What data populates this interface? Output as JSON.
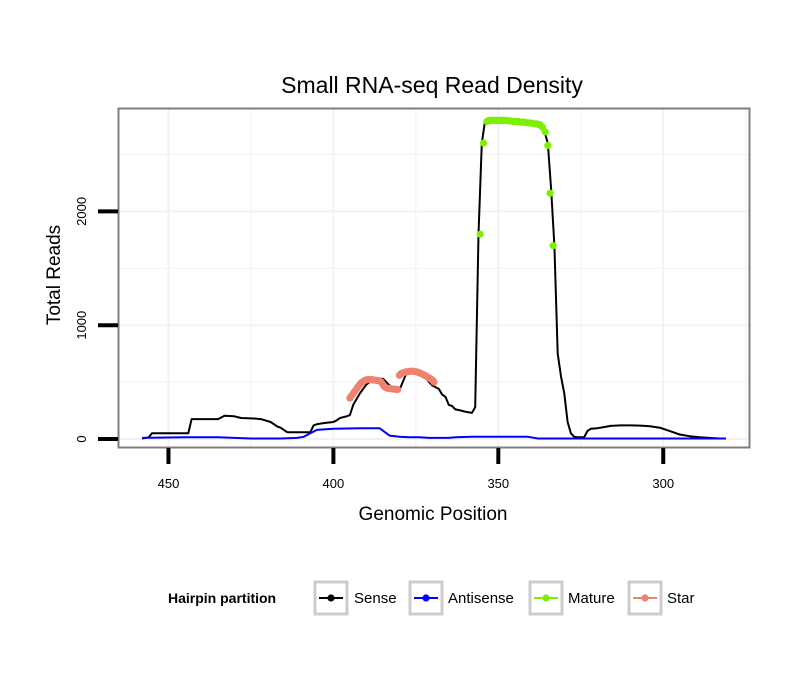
{
  "chart_data": {
    "type": "line",
    "title": "Small RNA-seq Read Density",
    "xlabel": "Genomic Position",
    "ylabel": "Total Reads",
    "xlim": [
      465,
      274
    ],
    "ylim": [
      -70,
      2900
    ],
    "x_reversed": true,
    "grid": true,
    "x_ticks": [
      {
        "value": 450,
        "label": "450"
      },
      {
        "value": 400,
        "label": "400"
      },
      {
        "value": 350,
        "label": "350"
      },
      {
        "value": 300,
        "label": "300"
      }
    ],
    "y_ticks": [
      {
        "value": 0,
        "label": "0"
      },
      {
        "value": 1000,
        "label": "1000"
      },
      {
        "value": 2000,
        "label": "2000"
      }
    ],
    "series": [
      {
        "name": "Sense",
        "color": "#000000",
        "x": [
          458,
          456,
          455,
          450,
          444,
          443,
          437,
          435,
          433,
          430,
          428,
          424,
          422,
          419,
          417,
          416,
          415,
          414,
          413,
          411,
          409,
          408,
          407,
          406,
          405,
          403,
          400,
          399,
          398,
          396,
          395,
          394,
          392,
          390,
          388,
          386,
          385,
          384,
          383,
          382,
          380,
          379,
          378,
          377,
          376,
          375,
          374,
          373,
          372,
          371,
          370,
          368,
          367,
          366,
          365,
          364,
          363,
          362,
          360,
          358,
          357,
          356,
          355,
          354,
          353,
          352,
          350,
          347,
          344,
          341,
          339,
          338,
          337,
          336,
          335,
          334,
          333,
          332,
          331,
          330,
          329,
          328,
          327,
          326,
          325,
          324,
          323,
          322,
          320,
          318,
          316,
          313,
          310,
          307,
          304,
          301,
          298,
          295,
          292,
          289,
          286,
          283,
          281
        ],
        "y": [
          5,
          15,
          50,
          50,
          50,
          175,
          175,
          175,
          205,
          200,
          185,
          180,
          175,
          150,
          110,
          100,
          80,
          60,
          60,
          60,
          60,
          60,
          60,
          120,
          130,
          140,
          150,
          165,
          185,
          200,
          210,
          300,
          400,
          480,
          520,
          530,
          530,
          500,
          470,
          450,
          430,
          500,
          570,
          600,
          610,
          600,
          580,
          560,
          540,
          500,
          470,
          440,
          390,
          370,
          300,
          290,
          260,
          255,
          240,
          230,
          280,
          1800,
          2600,
          2800,
          2800,
          2800,
          2800,
          2800,
          2790,
          2780,
          2770,
          2760,
          2740,
          2700,
          2600,
          2200,
          1700,
          750,
          550,
          400,
          150,
          50,
          20,
          15,
          15,
          15,
          70,
          90,
          95,
          105,
          115,
          120,
          120,
          118,
          112,
          100,
          70,
          40,
          25,
          15,
          10,
          5,
          5
        ]
      },
      {
        "name": "Antisense",
        "color": "#0000ff",
        "x": [
          458,
          445,
          435,
          425,
          416,
          411,
          409,
          407,
          405,
          400,
          392,
          389,
          386,
          383,
          380,
          377,
          374,
          371,
          368,
          365,
          363,
          358,
          350,
          341,
          338,
          334,
          320,
          310,
          300,
          290,
          285,
          281
        ],
        "y": [
          10,
          15,
          15,
          5,
          5,
          10,
          20,
          50,
          80,
          90,
          95,
          95,
          95,
          30,
          20,
          15,
          15,
          10,
          10,
          10,
          15,
          20,
          20,
          20,
          5,
          5,
          5,
          5,
          5,
          5,
          5,
          5
        ]
      },
      {
        "name": "Mature",
        "color": "#7cf000",
        "x": [
          355.5,
          354.5,
          353.5,
          352.9,
          352.3,
          351.7,
          351.1,
          350.5,
          349.9,
          349.3,
          348.7,
          348.1,
          347.5,
          346.9,
          346.3,
          345.7,
          345.1,
          344.5,
          343.9,
          343.3,
          342.7,
          342.1,
          341.5,
          340.9,
          340.3,
          339.7,
          339.1,
          338.5,
          337.9,
          337.3,
          336.6,
          335.8,
          335.0,
          334.3,
          333.4
        ],
        "y": [
          1800,
          2600,
          2790,
          2800,
          2800,
          2800,
          2800,
          2800,
          2800,
          2800,
          2800,
          2800,
          2800,
          2795,
          2795,
          2790,
          2790,
          2790,
          2790,
          2785,
          2785,
          2785,
          2780,
          2780,
          2775,
          2775,
          2770,
          2770,
          2765,
          2760,
          2740,
          2700,
          2580,
          2160,
          1700
        ]
      },
      {
        "name": "Star",
        "color": "#f08070",
        "x": [
          395,
          394.5,
          394,
          393.5,
          393,
          392.5,
          392,
          391.5,
          391,
          390.5,
          390,
          389.5,
          389,
          388.5,
          388,
          387.5,
          387,
          386.5,
          386,
          385.5,
          385,
          384.5,
          384,
          383.5,
          383,
          382.5,
          382,
          381.5,
          381,
          380.5,
          380,
          379.5,
          379,
          378.5,
          378,
          377.5,
          377,
          376.5,
          376,
          375.5,
          375,
          374.5,
          374,
          373.5,
          373,
          372.5,
          372,
          371.5,
          371,
          370.5,
          370,
          369.5
        ],
        "y": [
          360,
          380,
          400,
          420,
          440,
          460,
          480,
          495,
          505,
          515,
          520,
          522,
          522,
          522,
          520,
          518,
          516,
          514,
          510,
          500,
          480,
          460,
          450,
          446,
          444,
          442,
          440,
          438,
          436,
          435,
          560,
          575,
          580,
          585,
          590,
          592,
          594,
          596,
          596,
          594,
          592,
          588,
          582,
          576,
          570,
          562,
          555,
          546,
          538,
          528,
          518,
          500
        ]
      }
    ],
    "legend": {
      "title": "Hairpin partition",
      "position": "bottom",
      "entries": [
        "Sense",
        "Antisense",
        "Mature",
        "Star"
      ]
    }
  }
}
